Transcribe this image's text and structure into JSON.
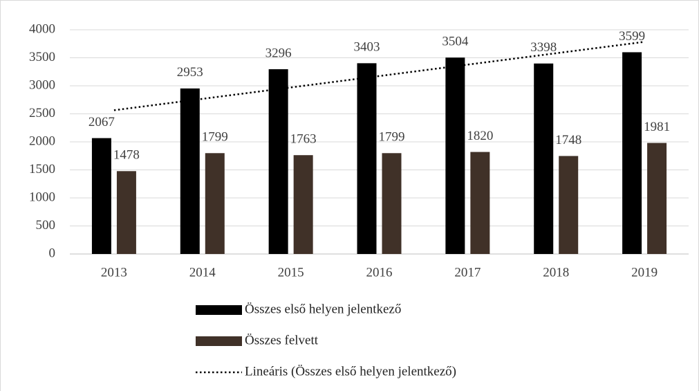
{
  "chart_data": {
    "type": "bar",
    "categories": [
      "2013",
      "2014",
      "2015",
      "2016",
      "2017",
      "2018",
      "2019"
    ],
    "series": [
      {
        "name": "Összes első helyen jelentkező",
        "color": "#000000",
        "values": [
          2067,
          2953,
          3296,
          3403,
          3504,
          3398,
          3599
        ]
      },
      {
        "name": "Összes felvett",
        "color": "#403128",
        "values": [
          1478,
          1799,
          1763,
          1799,
          1820,
          1748,
          1981
        ]
      }
    ],
    "trendline": {
      "name": "Lineáris (Összes első helyen jelentkező)",
      "type": "linear",
      "color": "#000000"
    },
    "ylim": [
      0,
      4000
    ],
    "yticks": [
      0,
      500,
      1000,
      1500,
      2000,
      2500,
      3000,
      3500,
      4000
    ],
    "grid": true,
    "legend": "bottom"
  }
}
